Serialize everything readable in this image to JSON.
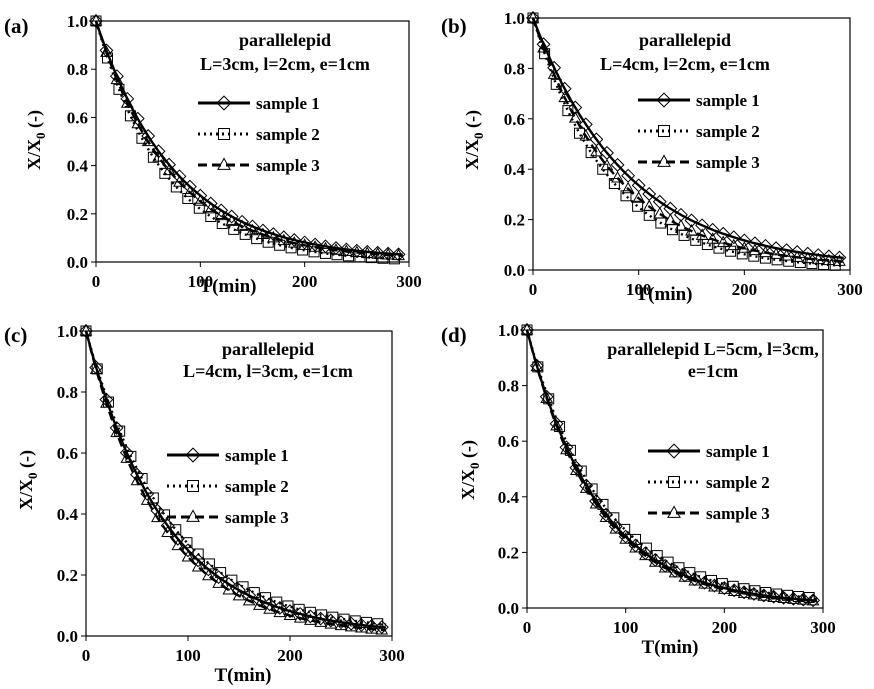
{
  "chart_data": [
    {
      "panel_label": "(a)",
      "type": "line",
      "title": [
        "parallelepid",
        "L=3cm, l=2cm, e=1cm"
      ],
      "xlabel": "T(min)",
      "ylabel": "X/X0 (-)",
      "xlim": [
        0,
        300
      ],
      "ylim": [
        0,
        1
      ],
      "x_ticks": [
        "0",
        "100",
        "200",
        "300"
      ],
      "y_ticks": [
        "0.0",
        "0.2",
        "0.4",
        "0.6",
        "0.8",
        "1.0"
      ],
      "grid": false,
      "legend_position": "right",
      "series": [
        {
          "name": "sample 1",
          "line": "solid",
          "marker": "diamond",
          "tau": 76,
          "tail": 0.01
        },
        {
          "name": "sample 2",
          "line": "dotted",
          "marker": "square",
          "tau": 66,
          "tail": 0
        },
        {
          "name": "sample 3",
          "line": "dashed",
          "marker": "triangle",
          "tau": 71,
          "tail": 0.01
        }
      ]
    },
    {
      "panel_label": "(b)",
      "type": "line",
      "title": [
        "parallelepid",
        "L=4cm, l=2cm, e=1cm"
      ],
      "xlabel": "T(min)",
      "ylabel": "X/X0 (-)",
      "xlim": [
        0,
        300
      ],
      "ylim": [
        0,
        1
      ],
      "x_ticks": [
        "0",
        "100",
        "200",
        "300"
      ],
      "y_ticks": [
        "0.0",
        "0.2",
        "0.4",
        "0.6",
        "0.8",
        "1.0"
      ],
      "grid": false,
      "legend_position": "right",
      "series": [
        {
          "name": "sample 1",
          "line": "solid",
          "marker": "diamond",
          "tau": 90,
          "tail": 0.01
        },
        {
          "name": "sample 2",
          "line": "dotted",
          "marker": "square",
          "tau": 72,
          "tail": 0
        },
        {
          "name": "sample 3",
          "line": "dashed",
          "marker": "triangle",
          "tau": 78,
          "tail": 0.01
        }
      ]
    },
    {
      "panel_label": "(c)",
      "type": "line",
      "title": [
        "parallelepid",
        "L=4cm, l=3cm, e=1cm"
      ],
      "xlabel": "T(min)",
      "ylabel": "X/X0 (-)",
      "xlim": [
        0,
        300
      ],
      "ylim": [
        0,
        1
      ],
      "x_ticks": [
        "0",
        "100",
        "200",
        "300"
      ],
      "y_ticks": [
        "0.0",
        "0.2",
        "0.4",
        "0.6",
        "0.8",
        "1.0"
      ],
      "grid": false,
      "legend_position": "right",
      "series": [
        {
          "name": "sample 1",
          "line": "solid",
          "marker": "diamond",
          "tau": 78,
          "tail": 0.005
        },
        {
          "name": "sample 2",
          "line": "dotted",
          "marker": "square",
          "tau": 82,
          "tail": 0.01
        },
        {
          "name": "sample 3",
          "line": "dashed",
          "marker": "triangle",
          "tau": 74,
          "tail": 0
        }
      ]
    },
    {
      "panel_label": "(d)",
      "type": "line",
      "title": [
        "parallelepid L=5cm, l=3cm,",
        "e=1cm"
      ],
      "xlabel": "T(min)",
      "ylabel": "X/X0 (-)",
      "xlim": [
        0,
        300
      ],
      "ylim": [
        0,
        1
      ],
      "x_ticks": [
        "0",
        "100",
        "200",
        "300"
      ],
      "y_ticks": [
        "0.0",
        "0.2",
        "0.4",
        "0.6",
        "0.8",
        "1.0"
      ],
      "grid": false,
      "legend_position": "right",
      "series": [
        {
          "name": "sample 1",
          "line": "solid",
          "marker": "diamond",
          "tau": 72,
          "tail": 0.01
        },
        {
          "name": "sample 2",
          "line": "dotted",
          "marker": "square",
          "tau": 76,
          "tail": 0.015
        },
        {
          "name": "sample 3",
          "line": "dashed",
          "marker": "triangle",
          "tau": 70,
          "tail": 0.01
        }
      ]
    }
  ]
}
